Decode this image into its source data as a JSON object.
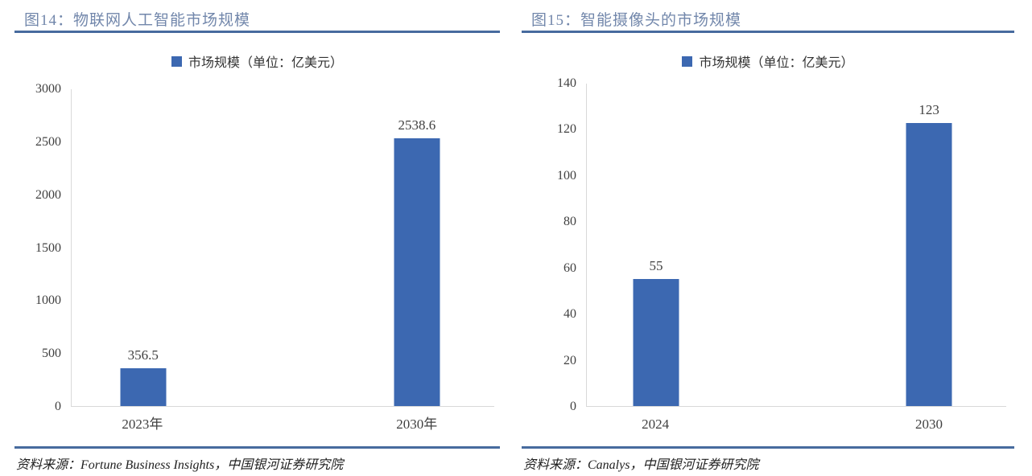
{
  "figures": [
    {
      "title": "图14：物联网人工智能市场规模",
      "legend": "市场规模（单位：亿美元）",
      "source": "资料来源：Fortune Business Insights，中国银河证券研究院"
    },
    {
      "title": "图15：智能摄像头的市场规模",
      "legend": "市场规模（单位：亿美元）",
      "source": "资料来源：Canalys，中国银河证券研究院"
    }
  ],
  "chart_data": [
    {
      "type": "bar",
      "title": "图14：物联网人工智能市场规模",
      "categories": [
        "2023年",
        "2030年"
      ],
      "series": [
        {
          "name": "市场规模（单位：亿美元）",
          "values": [
            356.5,
            2538.6
          ]
        }
      ],
      "data_labels": [
        "356.5",
        "2538.6"
      ],
      "ylabel": "",
      "xlabel": "",
      "ylim": [
        0,
        3000
      ],
      "yticks": [
        0,
        500,
        1000,
        1500,
        2000,
        2500,
        3000
      ],
      "grid": false,
      "legend_position": "top-center",
      "bar_color": "#3C68B1"
    },
    {
      "type": "bar",
      "title": "图15：智能摄像头的市场规模",
      "categories": [
        "2024",
        "2030"
      ],
      "series": [
        {
          "name": "市场规模（单位：亿美元）",
          "values": [
            55,
            123
          ]
        }
      ],
      "data_labels": [
        "55",
        "123"
      ],
      "ylabel": "",
      "xlabel": "",
      "ylim": [
        0,
        140
      ],
      "yticks": [
        0,
        20,
        40,
        60,
        80,
        100,
        120,
        140
      ],
      "grid": false,
      "legend_position": "top-center",
      "bar_color": "#3C68B1"
    }
  ],
  "colors": {
    "bar": "#3C68B1",
    "title_text": "#7287AB",
    "rule": "#476B9E",
    "axis_line": "#D9D9D9",
    "tick_text": "#404040",
    "source_text": "#1F1F1F"
  }
}
